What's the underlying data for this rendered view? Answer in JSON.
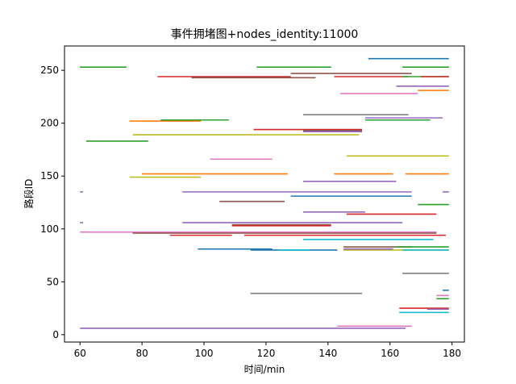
{
  "chart_data": {
    "type": "line",
    "title": "事件拥堵图+nodes_identity:11000",
    "xlabel": "时间/min",
    "ylabel": "路段ID",
    "xlim": [
      55,
      184
    ],
    "ylim": [
      -7,
      273
    ],
    "xticks": [
      60,
      80,
      100,
      120,
      140,
      160,
      180
    ],
    "yticks": [
      0,
      50,
      100,
      150,
      200,
      250
    ],
    "grid": false,
    "legend": "none",
    "segments": [
      {
        "x0": 153,
        "x1": 179,
        "y": 261,
        "color": "#1f77b4"
      },
      {
        "x0": 60,
        "x1": 75,
        "y": 253,
        "color": "#2ca02c"
      },
      {
        "x0": 117,
        "x1": 141,
        "y": 253,
        "color": "#2ca02c"
      },
      {
        "x0": 164,
        "x1": 179,
        "y": 253,
        "color": "#2ca02c"
      },
      {
        "x0": 128,
        "x1": 167,
        "y": 247,
        "color": "#8c564b"
      },
      {
        "x0": 85,
        "x1": 128,
        "y": 244,
        "color": "#d62728"
      },
      {
        "x0": 96,
        "x1": 136,
        "y": 243,
        "color": "#8c564b"
      },
      {
        "x0": 142,
        "x1": 166,
        "y": 244,
        "color": "#d62728"
      },
      {
        "x0": 164,
        "x1": 179,
        "y": 244,
        "color": "#2ca02c"
      },
      {
        "x0": 170,
        "x1": 179,
        "y": 244,
        "color": "#d62728"
      },
      {
        "x0": 162,
        "x1": 179,
        "y": 235,
        "color": "#9467bd"
      },
      {
        "x0": 169,
        "x1": 179,
        "y": 231,
        "color": "#ff7f0e"
      },
      {
        "x0": 144,
        "x1": 169,
        "y": 228,
        "color": "#e377c2"
      },
      {
        "x0": 132,
        "x1": 166,
        "y": 208,
        "color": "#7f7f7f"
      },
      {
        "x0": 152,
        "x1": 177,
        "y": 205,
        "color": "#9467bd"
      },
      {
        "x0": 152,
        "x1": 173,
        "y": 203,
        "color": "#2ca02c"
      },
      {
        "x0": 76,
        "x1": 99,
        "y": 202,
        "color": "#ff7f0e"
      },
      {
        "x0": 86,
        "x1": 108,
        "y": 203,
        "color": "#2ca02c"
      },
      {
        "x0": 116,
        "x1": 151,
        "y": 194,
        "color": "#d62728"
      },
      {
        "x0": 132,
        "x1": 151,
        "y": 193,
        "color": "#8c564b"
      },
      {
        "x0": 132,
        "x1": 151,
        "y": 192,
        "color": "#9467bd"
      },
      {
        "x0": 77,
        "x1": 150,
        "y": 189,
        "color": "#bcbd22"
      },
      {
        "x0": 62,
        "x1": 82,
        "y": 183,
        "color": "#2ca02c"
      },
      {
        "x0": 146,
        "x1": 179,
        "y": 169,
        "color": "#bcbd22"
      },
      {
        "x0": 102,
        "x1": 122,
        "y": 166,
        "color": "#e377c2"
      },
      {
        "x0": 80,
        "x1": 127,
        "y": 152,
        "color": "#ff7f0e"
      },
      {
        "x0": 142,
        "x1": 161,
        "y": 152,
        "color": "#ff7f0e"
      },
      {
        "x0": 165,
        "x1": 179,
        "y": 152,
        "color": "#ff7f0e"
      },
      {
        "x0": 76,
        "x1": 99,
        "y": 149,
        "color": "#bcbd22"
      },
      {
        "x0": 132,
        "x1": 162,
        "y": 145,
        "color": "#9467bd"
      },
      {
        "x0": 60,
        "x1": 61,
        "y": 135,
        "color": "#9467bd"
      },
      {
        "x0": 93,
        "x1": 167,
        "y": 135,
        "color": "#9467bd"
      },
      {
        "x0": 177,
        "x1": 179,
        "y": 135,
        "color": "#9467bd"
      },
      {
        "x0": 128,
        "x1": 167,
        "y": 131,
        "color": "#1f77b4"
      },
      {
        "x0": 105,
        "x1": 126,
        "y": 126,
        "color": "#8c564b"
      },
      {
        "x0": 169,
        "x1": 179,
        "y": 123,
        "color": "#2ca02c"
      },
      {
        "x0": 132,
        "x1": 152,
        "y": 116,
        "color": "#9467bd"
      },
      {
        "x0": 146,
        "x1": 175,
        "y": 114,
        "color": "#d62728"
      },
      {
        "x0": 60,
        "x1": 61,
        "y": 106,
        "color": "#9467bd"
      },
      {
        "x0": 93,
        "x1": 164,
        "y": 106,
        "color": "#9467bd"
      },
      {
        "x0": 109,
        "x1": 141,
        "y": 104,
        "color": "#8c564b"
      },
      {
        "x0": 109,
        "x1": 141,
        "y": 103,
        "color": "#d62728"
      },
      {
        "x0": 60,
        "x1": 175,
        "y": 97,
        "color": "#e377c2"
      },
      {
        "x0": 77,
        "x1": 175,
        "y": 96,
        "color": "#8c564b"
      },
      {
        "x0": 89,
        "x1": 109,
        "y": 94,
        "color": "#d62728"
      },
      {
        "x0": 113,
        "x1": 178,
        "y": 94,
        "color": "#d62728"
      },
      {
        "x0": 132,
        "x1": 174,
        "y": 90,
        "color": "#17becf"
      },
      {
        "x0": 145,
        "x1": 167,
        "y": 83,
        "color": "#8c564b"
      },
      {
        "x0": 162,
        "x1": 179,
        "y": 83,
        "color": "#2ca02c"
      },
      {
        "x0": 98,
        "x1": 122,
        "y": 81,
        "color": "#1f77b4"
      },
      {
        "x0": 115,
        "x1": 143,
        "y": 80,
        "color": "#1f77b4"
      },
      {
        "x0": 124,
        "x1": 134,
        "y": 80,
        "color": "#17becf"
      },
      {
        "x0": 145,
        "x1": 179,
        "y": 80,
        "color": "#bcbd22"
      },
      {
        "x0": 145,
        "x1": 161,
        "y": 81,
        "color": "#9467bd"
      },
      {
        "x0": 164,
        "x1": 179,
        "y": 80,
        "color": "#17becf"
      },
      {
        "x0": 164,
        "x1": 179,
        "y": 58,
        "color": "#7f7f7f"
      },
      {
        "x0": 177,
        "x1": 179,
        "y": 42,
        "color": "#1f77b4"
      },
      {
        "x0": 175,
        "x1": 179,
        "y": 37,
        "color": "#e377c2"
      },
      {
        "x0": 175,
        "x1": 179,
        "y": 34,
        "color": "#2ca02c"
      },
      {
        "x0": 115,
        "x1": 151,
        "y": 39,
        "color": "#7f7f7f"
      },
      {
        "x0": 163,
        "x1": 179,
        "y": 25,
        "color": "#d62728"
      },
      {
        "x0": 172,
        "x1": 179,
        "y": 24,
        "color": "#9467bd"
      },
      {
        "x0": 163,
        "x1": 179,
        "y": 21,
        "color": "#17becf"
      },
      {
        "x0": 143,
        "x1": 167,
        "y": 8,
        "color": "#e377c2"
      },
      {
        "x0": 60,
        "x1": 165,
        "y": 6,
        "color": "#9467bd"
      }
    ]
  }
}
